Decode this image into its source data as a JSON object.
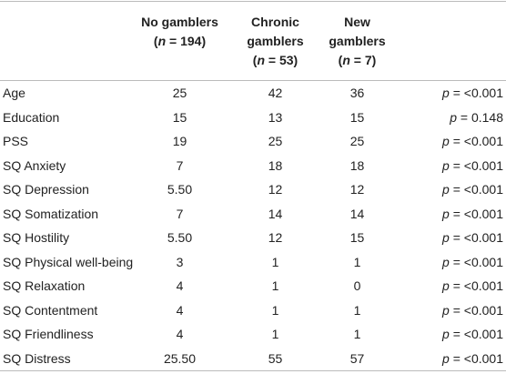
{
  "header": [
    {
      "lines": [
        {
          "text": "No gamblers"
        },
        {
          "pre": "(",
          "var": "n",
          "post": " = 194)"
        }
      ]
    },
    {
      "lines": [
        {
          "text": "Chronic"
        },
        {
          "text": "gamblers"
        },
        {
          "pre": "(",
          "var": "n",
          "post": " = 53)"
        }
      ]
    },
    {
      "lines": [
        {
          "text": "New"
        },
        {
          "text": "gamblers"
        },
        {
          "pre": "(",
          "var": "n",
          "post": " = 7)"
        }
      ]
    }
  ],
  "rows": [
    {
      "label": "Age",
      "values": [
        25,
        42,
        36
      ],
      "p": {
        "var": "p",
        "text": " = <0.001"
      }
    },
    {
      "label": "Education",
      "values": [
        15,
        13,
        15
      ],
      "p": {
        "var": "p",
        "text": " = 0.148"
      }
    },
    {
      "label": "PSS",
      "values": [
        19,
        25,
        25
      ],
      "p": {
        "var": "p",
        "text": " = <0.001"
      }
    },
    {
      "label": "SQ Anxiety",
      "values": [
        7,
        18,
        18
      ],
      "p": {
        "var": "p",
        "text": " = <0.001"
      }
    },
    {
      "label": "SQ Depression",
      "values": [
        "5.50",
        12,
        12
      ],
      "p": {
        "var": "p",
        "text": " = <0.001"
      }
    },
    {
      "label": "SQ Somatization",
      "values": [
        7,
        14,
        14
      ],
      "p": {
        "var": "p",
        "text": " = <0.001"
      }
    },
    {
      "label": "SQ Hostility",
      "values": [
        "5.50",
        12,
        15
      ],
      "p": {
        "var": "p",
        "text": " = <0.001"
      }
    },
    {
      "label": "SQ Physical well-being",
      "values": [
        3,
        1,
        1
      ],
      "p": {
        "var": "p",
        "text": " = <0.001"
      }
    },
    {
      "label": "SQ Relaxation",
      "values": [
        4,
        1,
        0
      ],
      "p": {
        "var": "p",
        "text": " = <0.001"
      }
    },
    {
      "label": "SQ Contentment",
      "values": [
        4,
        1,
        1
      ],
      "p": {
        "var": "p",
        "text": " = <0.001"
      }
    },
    {
      "label": "SQ Friendliness",
      "values": [
        4,
        1,
        1
      ],
      "p": {
        "var": "p",
        "text": " = <0.001"
      }
    },
    {
      "label": "SQ Distress",
      "values": [
        "25.50",
        55,
        57
      ],
      "p": {
        "var": "p",
        "text": " = <0.001"
      }
    }
  ]
}
